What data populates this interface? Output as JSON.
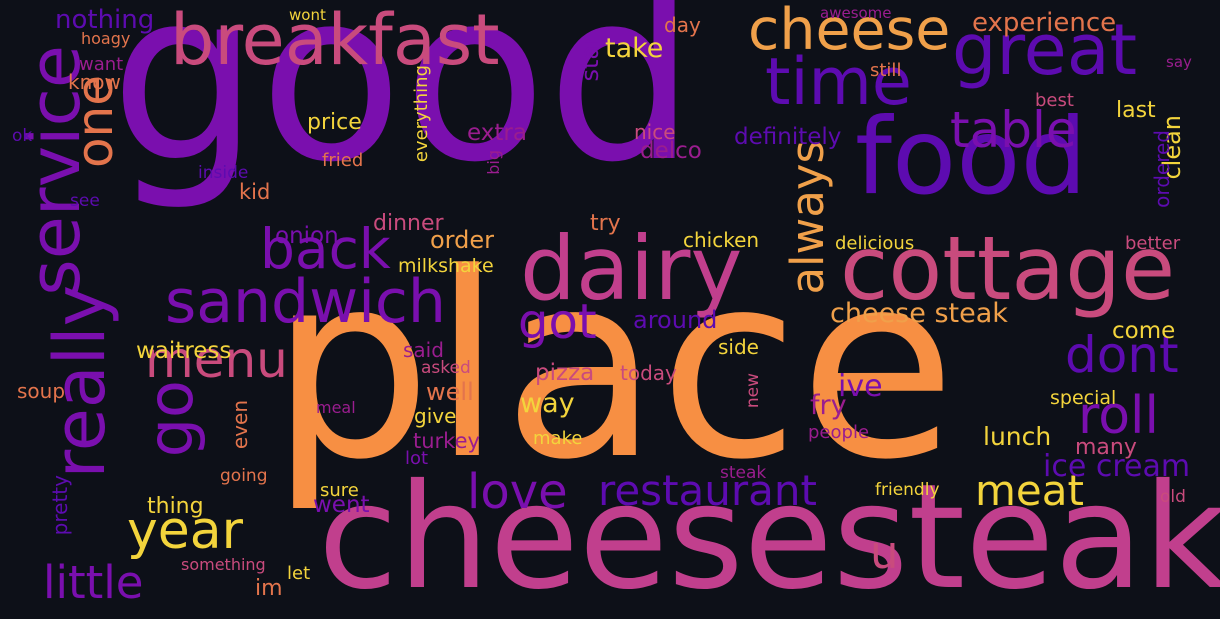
{
  "words": [
    {
      "text": "good",
      "color": "#7a0fae"
    },
    {
      "text": "place",
      "color": "#f78f43"
    },
    {
      "text": "cheesesteak",
      "color": "#c13f8d"
    },
    {
      "text": "food",
      "color": "#5d0bb0"
    },
    {
      "text": "dairy",
      "color": "#c13f8d"
    },
    {
      "text": "cottage",
      "color": "#c94b7d"
    },
    {
      "text": "breakfast",
      "color": "#c94b7d"
    },
    {
      "text": "great",
      "color": "#5d0bb0"
    },
    {
      "text": "time",
      "color": "#5d0bb0"
    },
    {
      "text": "cheese",
      "color": "#f0a04a"
    },
    {
      "text": "service",
      "color": "#7a0fae"
    },
    {
      "text": "really",
      "color": "#7a0fae"
    },
    {
      "text": "go",
      "color": "#7a0fae"
    },
    {
      "text": "one",
      "color": "#e3744c"
    },
    {
      "text": "sandwich",
      "color": "#7a0fae"
    },
    {
      "text": "back",
      "color": "#7a0fae"
    },
    {
      "text": "table",
      "color": "#7a0fae"
    },
    {
      "text": "always",
      "color": "#f0a04a"
    },
    {
      "text": "menu",
      "color": "#c94b7d"
    },
    {
      "text": "got",
      "color": "#7a0fae"
    },
    {
      "text": "dont",
      "color": "#5d0bb0"
    },
    {
      "text": "roll",
      "color": "#7a0fae"
    },
    {
      "text": "year",
      "color": "#f3d43c"
    },
    {
      "text": "love",
      "color": "#7a0fae"
    },
    {
      "text": "restaurant",
      "color": "#5d0bb0"
    },
    {
      "text": "meat",
      "color": "#f3d43c"
    },
    {
      "text": "little",
      "color": "#7a0fae"
    },
    {
      "text": "u",
      "color": "#c94b7d"
    },
    {
      "text": "cheese steak",
      "color": "#f0a04a"
    },
    {
      "text": "ice cream",
      "color": "#5d0bb0"
    },
    {
      "text": "experience",
      "color": "#e3744c"
    },
    {
      "text": "take",
      "color": "#f3d43c"
    },
    {
      "text": "star",
      "color": "#7a0fae"
    },
    {
      "text": "day",
      "color": "#e3744c"
    },
    {
      "text": "nothing",
      "color": "#5d0bb0"
    },
    {
      "text": "wont",
      "color": "#f3d43c"
    },
    {
      "text": "awesome",
      "color": "#9a1d8f"
    },
    {
      "text": "hoagy",
      "color": "#e3744c"
    },
    {
      "text": "want",
      "color": "#9a1d8f"
    },
    {
      "text": "know",
      "color": "#e3744c"
    },
    {
      "text": "still",
      "color": "#e3744c"
    },
    {
      "text": "say",
      "color": "#9a1d8f"
    },
    {
      "text": "best",
      "color": "#c94b7d"
    },
    {
      "text": "last",
      "color": "#f3d43c"
    },
    {
      "text": "clean",
      "color": "#f3d43c"
    },
    {
      "text": "ordered",
      "color": "#5d0bb0"
    },
    {
      "text": "price",
      "color": "#f3d43c"
    },
    {
      "text": "extra",
      "color": "#9a1d8f"
    },
    {
      "text": "nice",
      "color": "#c94b7d"
    },
    {
      "text": "delco",
      "color": "#9a1d8f"
    },
    {
      "text": "definitely",
      "color": "#5d0bb0"
    },
    {
      "text": "everything",
      "color": "#f3d43c"
    },
    {
      "text": "big",
      "color": "#9a1d8f"
    },
    {
      "text": "fried",
      "color": "#e3744c"
    },
    {
      "text": "ok",
      "color": "#5d0bb0"
    },
    {
      "text": "inside",
      "color": "#5d0bb0"
    },
    {
      "text": "see",
      "color": "#5d0bb0"
    },
    {
      "text": "kid",
      "color": "#e3744c"
    },
    {
      "text": "onion",
      "color": "#7a0fae"
    },
    {
      "text": "dinner",
      "color": "#c94b7d"
    },
    {
      "text": "try",
      "color": "#e3744c"
    },
    {
      "text": "order",
      "color": "#f0a04a"
    },
    {
      "text": "chicken",
      "color": "#f3d43c"
    },
    {
      "text": "delicious",
      "color": "#f3d43c"
    },
    {
      "text": "better",
      "color": "#c94b7d"
    },
    {
      "text": "milkshake",
      "color": "#f3d43c"
    },
    {
      "text": "around",
      "color": "#5d0bb0"
    },
    {
      "text": "come",
      "color": "#f3d43c"
    },
    {
      "text": "waitress",
      "color": "#f3d43c"
    },
    {
      "text": "said",
      "color": "#9a1d8f"
    },
    {
      "text": "side",
      "color": "#f3d43c"
    },
    {
      "text": "pizza",
      "color": "#c94b7d"
    },
    {
      "text": "today",
      "color": "#c94b7d"
    },
    {
      "text": "asked",
      "color": "#c94b7d"
    },
    {
      "text": "well",
      "color": "#e3744c"
    },
    {
      "text": "soup",
      "color": "#e3744c"
    },
    {
      "text": "meal",
      "color": "#9a1d8f"
    },
    {
      "text": "way",
      "color": "#f3d43c"
    },
    {
      "text": "fry",
      "color": "#9a1d8f"
    },
    {
      "text": "ive",
      "color": "#7a0fae"
    },
    {
      "text": "new",
      "color": "#c94b7d"
    },
    {
      "text": "special",
      "color": "#f3d43c"
    },
    {
      "text": "even",
      "color": "#e3744c"
    },
    {
      "text": "give",
      "color": "#f3d43c"
    },
    {
      "text": "people",
      "color": "#9a1d8f"
    },
    {
      "text": "lunch",
      "color": "#f3d43c"
    },
    {
      "text": "turkey",
      "color": "#9a1d8f"
    },
    {
      "text": "make",
      "color": "#f3d43c"
    },
    {
      "text": "many",
      "color": "#c94b7d"
    },
    {
      "text": "lot",
      "color": "#7a0fae"
    },
    {
      "text": "going",
      "color": "#e3744c"
    },
    {
      "text": "steak",
      "color": "#9a1d8f"
    },
    {
      "text": "thing",
      "color": "#f3d43c"
    },
    {
      "text": "pretty",
      "color": "#5d0bb0"
    },
    {
      "text": "sure",
      "color": "#f3d43c"
    },
    {
      "text": "went",
      "color": "#7a0fae"
    },
    {
      "text": "friendly",
      "color": "#f3d43c"
    },
    {
      "text": "old",
      "color": "#c94b7d"
    },
    {
      "text": "something",
      "color": "#c94b7d"
    },
    {
      "text": "let",
      "color": "#f3d43c"
    },
    {
      "text": "im",
      "color": "#e3744c"
    }
  ]
}
